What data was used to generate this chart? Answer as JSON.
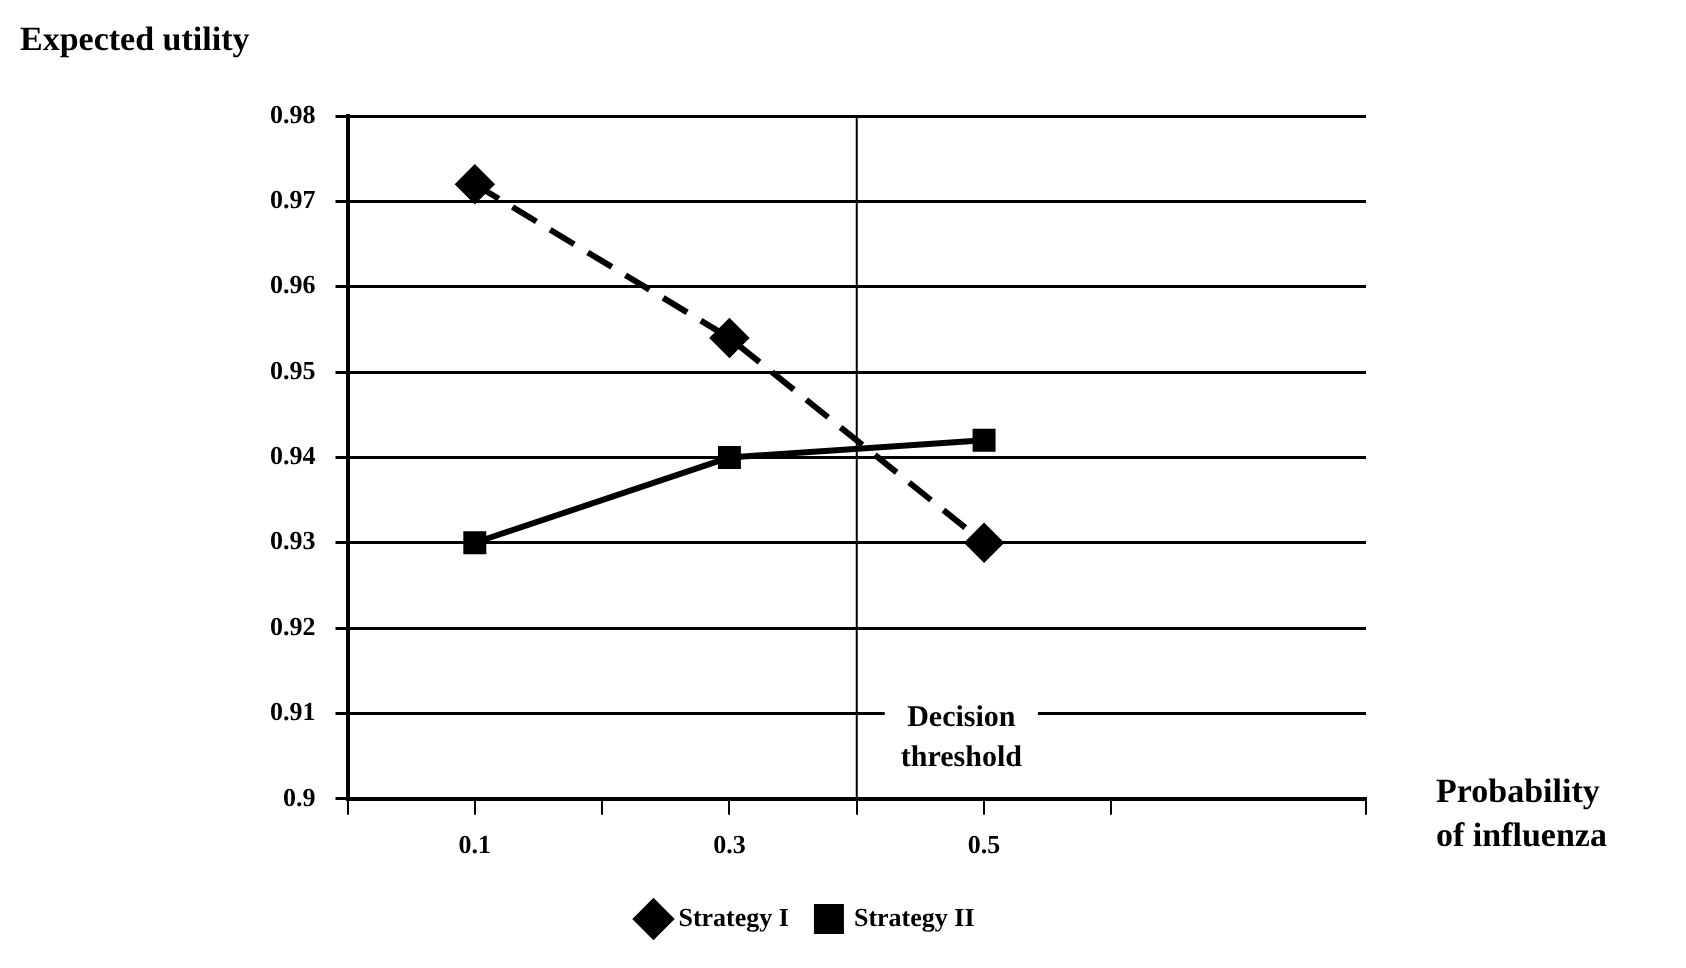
{
  "chart_data": {
    "type": "line",
    "ylabel": "Expected utility",
    "xlabel": "Probability\nof influenza",
    "x": [
      0.1,
      0.3,
      0.5
    ],
    "xlim": [
      0,
      0.8
    ],
    "xticks": [
      {
        "value": 0,
        "label": null
      },
      {
        "value": 0.1,
        "label": "0.1"
      },
      {
        "value": 0.2,
        "label": null
      },
      {
        "value": 0.3,
        "label": "0.3"
      },
      {
        "value": 0.4,
        "label": null
      },
      {
        "value": 0.5,
        "label": "0.5"
      },
      {
        "value": 0.6,
        "label": null
      },
      {
        "value": 0.8,
        "label": null
      }
    ],
    "ylim": [
      0.9,
      0.98
    ],
    "yticks": [
      0.9,
      0.91,
      0.92,
      0.93,
      0.94,
      0.95,
      0.96,
      0.97,
      0.98
    ],
    "series": [
      {
        "name": "Strategy I",
        "color": "#000000",
        "values": [
          0.972,
          0.954,
          0.93
        ],
        "marker": "diamond",
        "line_style": "dashed"
      },
      {
        "name": "Strategy II",
        "color": "#000000",
        "values": [
          0.93,
          0.94,
          0.942
        ],
        "marker": "square",
        "line_style": "solid"
      }
    ],
    "ref_lines": [
      {
        "axis": "x",
        "value": 0.4,
        "label": "Decision\nthreshold",
        "color": "#000000"
      }
    ],
    "grid": "y",
    "legend": "bottom"
  }
}
